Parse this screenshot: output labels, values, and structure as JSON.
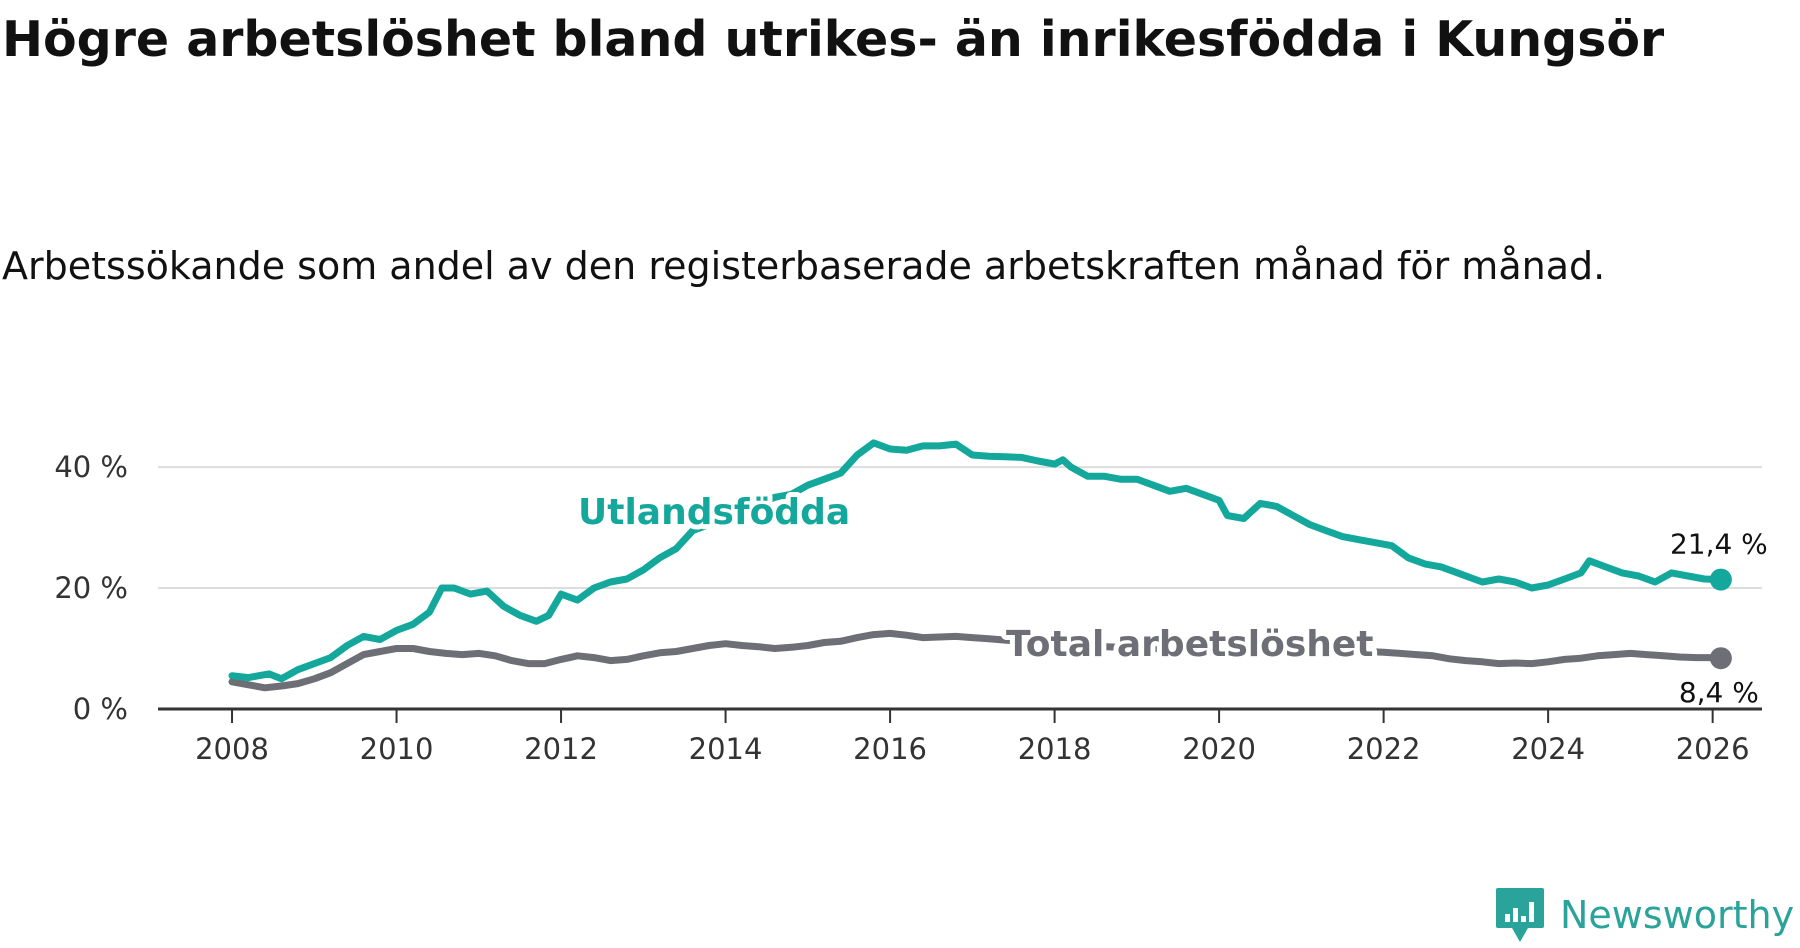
{
  "title": "Högre arbetslöshet bland utrikes- än inrikesfödda i Kungsör",
  "subtitle": "Arbetssökande som andel av den registerbaserade arbetskraften månad för månad.",
  "logo": {
    "text": "Newsworthy",
    "icon": "newsworthy-bar-chart-icon",
    "color": "#2aa39a"
  },
  "colors": {
    "utlandsfodda": "#13a89b",
    "total": "#6e6e76",
    "grid": "#dddddd",
    "axis": "#333333"
  },
  "chart_data": {
    "type": "line",
    "title": "Högre arbetslöshet bland utrikes- än inrikesfödda i Kungsör",
    "xlabel": "",
    "ylabel": "",
    "xlim": [
      2007.1,
      2026.6
    ],
    "ylim": [
      0,
      42
    ],
    "x_ticks": [
      2008,
      2010,
      2012,
      2014,
      2016,
      2018,
      2020,
      2022,
      2024,
      2026
    ],
    "x_tick_labels": [
      "2008",
      "2010",
      "2012",
      "2014",
      "2016",
      "2018",
      "2020",
      "2022",
      "2024",
      "2026"
    ],
    "y_ticks": [
      0,
      20,
      40
    ],
    "y_tick_labels": [
      "0 %",
      "20 %",
      "40 %"
    ],
    "grid": true,
    "series": [
      {
        "name": "Utlandsfödda",
        "color": "#13a89b",
        "end_label": "21,4 %",
        "points": [
          [
            2008.0,
            5.5
          ],
          [
            2008.2,
            5.2
          ],
          [
            2008.45,
            5.8
          ],
          [
            2008.6,
            5.0
          ],
          [
            2008.8,
            6.5
          ],
          [
            2009.0,
            7.5
          ],
          [
            2009.2,
            8.5
          ],
          [
            2009.4,
            10.5
          ],
          [
            2009.6,
            12.0
          ],
          [
            2009.8,
            11.5
          ],
          [
            2010.0,
            13.0
          ],
          [
            2010.2,
            14.0
          ],
          [
            2010.4,
            16.0
          ],
          [
            2010.55,
            20.0
          ],
          [
            2010.7,
            20.0
          ],
          [
            2010.9,
            19.0
          ],
          [
            2011.1,
            19.5
          ],
          [
            2011.3,
            17.0
          ],
          [
            2011.5,
            15.5
          ],
          [
            2011.7,
            14.5
          ],
          [
            2011.85,
            15.5
          ],
          [
            2012.0,
            19.0
          ],
          [
            2012.2,
            18.0
          ],
          [
            2012.4,
            20.0
          ],
          [
            2012.6,
            21.0
          ],
          [
            2012.8,
            21.5
          ],
          [
            2013.0,
            23.0
          ],
          [
            2013.2,
            25.0
          ],
          [
            2013.4,
            26.5
          ],
          [
            2013.6,
            29.5
          ],
          [
            2013.8,
            30.5
          ],
          [
            2014.0,
            32.0
          ],
          [
            2014.2,
            33.5
          ],
          [
            2014.4,
            34.0
          ],
          [
            2014.6,
            35.0
          ],
          [
            2014.8,
            35.5
          ],
          [
            2015.0,
            37.0
          ],
          [
            2015.2,
            38.0
          ],
          [
            2015.4,
            39.0
          ],
          [
            2015.6,
            42.0
          ],
          [
            2015.8,
            44.0
          ],
          [
            2016.0,
            43.0
          ],
          [
            2016.2,
            42.8
          ],
          [
            2016.4,
            43.5
          ],
          [
            2016.6,
            43.5
          ],
          [
            2016.8,
            43.8
          ],
          [
            2017.0,
            42.0
          ],
          [
            2017.2,
            41.8
          ],
          [
            2017.4,
            41.7
          ],
          [
            2017.6,
            41.6
          ],
          [
            2017.8,
            41.0
          ],
          [
            2018.0,
            40.5
          ],
          [
            2018.1,
            41.2
          ],
          [
            2018.2,
            40.0
          ],
          [
            2018.4,
            38.5
          ],
          [
            2018.6,
            38.5
          ],
          [
            2018.8,
            38.0
          ],
          [
            2019.0,
            38.0
          ],
          [
            2019.2,
            37.0
          ],
          [
            2019.4,
            36.0
          ],
          [
            2019.6,
            36.5
          ],
          [
            2019.8,
            35.5
          ],
          [
            2020.0,
            34.5
          ],
          [
            2020.1,
            32.0
          ],
          [
            2020.3,
            31.5
          ],
          [
            2020.5,
            34.0
          ],
          [
            2020.7,
            33.5
          ],
          [
            2020.9,
            32.0
          ],
          [
            2021.1,
            30.5
          ],
          [
            2021.3,
            29.5
          ],
          [
            2021.5,
            28.5
          ],
          [
            2021.7,
            28.0
          ],
          [
            2021.9,
            27.5
          ],
          [
            2022.1,
            27.0
          ],
          [
            2022.3,
            25.0
          ],
          [
            2022.5,
            24.0
          ],
          [
            2022.7,
            23.5
          ],
          [
            2022.9,
            22.5
          ],
          [
            2023.0,
            22.0
          ],
          [
            2023.2,
            21.0
          ],
          [
            2023.4,
            21.5
          ],
          [
            2023.6,
            21.0
          ],
          [
            2023.8,
            20.0
          ],
          [
            2024.0,
            20.5
          ],
          [
            2024.2,
            21.5
          ],
          [
            2024.4,
            22.5
          ],
          [
            2024.5,
            24.5
          ],
          [
            2024.7,
            23.5
          ],
          [
            2024.9,
            22.5
          ],
          [
            2025.1,
            22.0
          ],
          [
            2025.3,
            21.0
          ],
          [
            2025.5,
            22.5
          ],
          [
            2025.7,
            22.0
          ],
          [
            2025.9,
            21.5
          ],
          [
            2026.1,
            21.4
          ]
        ]
      },
      {
        "name": "Total arbetslöshet",
        "color": "#6e6e76",
        "end_label": "8,4 %",
        "points": [
          [
            2008.0,
            4.5
          ],
          [
            2008.2,
            4.0
          ],
          [
            2008.4,
            3.5
          ],
          [
            2008.6,
            3.8
          ],
          [
            2008.8,
            4.2
          ],
          [
            2009.0,
            5.0
          ],
          [
            2009.2,
            6.0
          ],
          [
            2009.4,
            7.5
          ],
          [
            2009.6,
            9.0
          ],
          [
            2009.8,
            9.5
          ],
          [
            2010.0,
            10.0
          ],
          [
            2010.2,
            10.0
          ],
          [
            2010.4,
            9.5
          ],
          [
            2010.6,
            9.2
          ],
          [
            2010.8,
            9.0
          ],
          [
            2011.0,
            9.2
          ],
          [
            2011.2,
            8.8
          ],
          [
            2011.4,
            8.0
          ],
          [
            2011.6,
            7.5
          ],
          [
            2011.8,
            7.5
          ],
          [
            2012.0,
            8.2
          ],
          [
            2012.2,
            8.8
          ],
          [
            2012.4,
            8.5
          ],
          [
            2012.6,
            8.0
          ],
          [
            2012.8,
            8.2
          ],
          [
            2013.0,
            8.8
          ],
          [
            2013.2,
            9.3
          ],
          [
            2013.4,
            9.5
          ],
          [
            2013.6,
            10.0
          ],
          [
            2013.8,
            10.5
          ],
          [
            2014.0,
            10.8
          ],
          [
            2014.2,
            10.5
          ],
          [
            2014.4,
            10.3
          ],
          [
            2014.6,
            10.0
          ],
          [
            2014.8,
            10.2
          ],
          [
            2015.0,
            10.5
          ],
          [
            2015.2,
            11.0
          ],
          [
            2015.4,
            11.2
          ],
          [
            2015.6,
            11.8
          ],
          [
            2015.8,
            12.3
          ],
          [
            2016.0,
            12.5
          ],
          [
            2016.2,
            12.2
          ],
          [
            2016.4,
            11.8
          ],
          [
            2016.6,
            11.9
          ],
          [
            2016.8,
            12.0
          ],
          [
            2017.0,
            11.8
          ],
          [
            2017.2,
            11.6
          ],
          [
            2017.4,
            11.4
          ],
          [
            2017.6,
            11.2
          ],
          [
            2017.8,
            11.0
          ],
          [
            2018.0,
            10.8
          ],
          [
            2018.4,
            10.4
          ],
          [
            2018.8,
            10.2
          ],
          [
            2019.2,
            10.0
          ],
          [
            2019.6,
            9.8
          ],
          [
            2020.0,
            10.0
          ],
          [
            2020.4,
            10.3
          ],
          [
            2020.8,
            10.0
          ],
          [
            2021.2,
            9.8
          ],
          [
            2021.6,
            9.6
          ],
          [
            2022.0,
            9.4
          ],
          [
            2022.2,
            9.2
          ],
          [
            2022.4,
            9.0
          ],
          [
            2022.6,
            8.8
          ],
          [
            2022.8,
            8.3
          ],
          [
            2023.0,
            8.0
          ],
          [
            2023.2,
            7.8
          ],
          [
            2023.4,
            7.5
          ],
          [
            2023.6,
            7.6
          ],
          [
            2023.8,
            7.5
          ],
          [
            2024.0,
            7.8
          ],
          [
            2024.2,
            8.2
          ],
          [
            2024.4,
            8.4
          ],
          [
            2024.6,
            8.8
          ],
          [
            2024.8,
            9.0
          ],
          [
            2025.0,
            9.2
          ],
          [
            2025.2,
            9.0
          ],
          [
            2025.4,
            8.8
          ],
          [
            2025.6,
            8.6
          ],
          [
            2025.8,
            8.5
          ],
          [
            2026.0,
            8.5
          ],
          [
            2026.1,
            8.4
          ]
        ]
      }
    ]
  }
}
